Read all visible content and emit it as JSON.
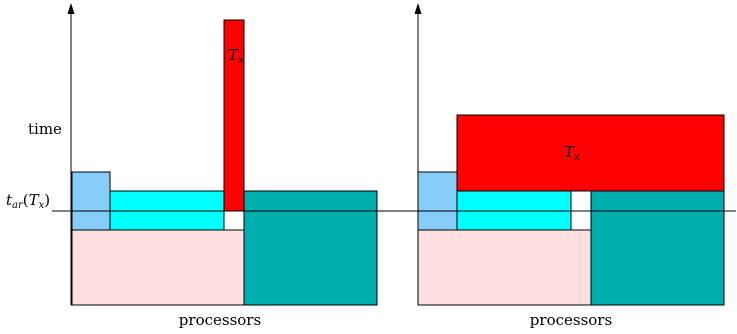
{
  "axes": {
    "y_label": "time",
    "x_label_left": "processors",
    "x_label_right": "processors"
  },
  "arrival_marker": {
    "t_base": "t",
    "t_sub": "ar",
    "open_paren": "(",
    "T_base": "T",
    "T_sub": "x",
    "close_paren": ")"
  },
  "tasks": {
    "left_tall_task": {
      "base": "T",
      "sub": "x"
    },
    "right_wide_task": {
      "base": "T",
      "sub": "x"
    }
  },
  "colors": {
    "task_tx": "#ff0000",
    "light_blue": "#87cdfa",
    "cyan": "#00ffff",
    "teal": "#00aeae",
    "pink": "#ffdfe0",
    "stroke": "#000000"
  }
}
